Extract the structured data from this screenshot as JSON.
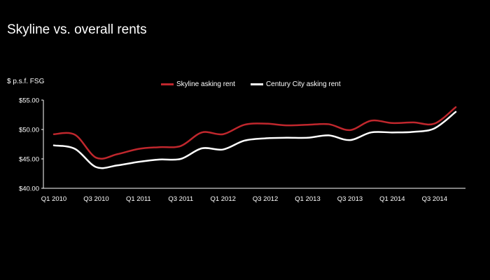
{
  "chart_data": {
    "type": "line",
    "title": "Skyline vs. overall rents",
    "ylabel": "$ p.s.f. FSG",
    "xlabel": "",
    "ylim": [
      40,
      55
    ],
    "yticks": [
      "$40.00",
      "$45.00",
      "$50.00",
      "$55.00"
    ],
    "ytick_values": [
      40,
      45,
      50,
      55
    ],
    "x": [
      "Q1 2010",
      "Q2 2010",
      "Q3 2010",
      "Q4 2010",
      "Q1 2011",
      "Q2 2011",
      "Q3 2011",
      "Q4 2011",
      "Q1 2012",
      "Q2 2012",
      "Q3 2012",
      "Q4 2012",
      "Q1 2013",
      "Q2 2013",
      "Q3 2013",
      "Q4 2013",
      "Q1 2014",
      "Q2 2014",
      "Q3 2014",
      "Q4 2014"
    ],
    "xtick_labels": [
      "Q1 2010",
      "Q3 2010",
      "Q1 2011",
      "Q3 2011",
      "Q1 2012",
      "Q3 2012",
      "Q1 2013",
      "Q3 2013",
      "Q1 2014",
      "Q3 2014"
    ],
    "series": [
      {
        "name": "Skyline asking rent",
        "color": "#c0272d",
        "values": [
          49.2,
          49.1,
          45.2,
          45.8,
          46.7,
          47.0,
          47.2,
          49.5,
          49.2,
          50.8,
          51.0,
          50.7,
          50.8,
          50.9,
          49.9,
          51.5,
          51.1,
          51.2,
          51.0,
          53.8
        ]
      },
      {
        "name": "Century City asking rent",
        "color": "#ffffff",
        "values": [
          47.3,
          46.7,
          43.6,
          43.9,
          44.5,
          44.9,
          45.0,
          46.8,
          46.6,
          48.1,
          48.5,
          48.6,
          48.6,
          49.0,
          48.2,
          49.5,
          49.5,
          49.6,
          50.2,
          53.0
        ]
      }
    ],
    "grid": false,
    "legend_position": "top-center"
  }
}
